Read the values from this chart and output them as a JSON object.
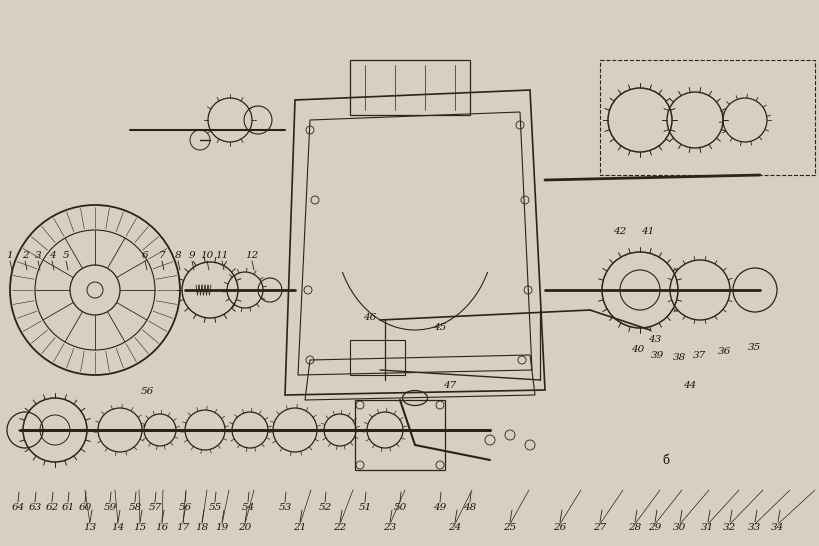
{
  "title": "",
  "background_color": "#d6cfc4",
  "fig_width": 8.2,
  "fig_height": 5.46,
  "dpi": 100,
  "labels_top": [
    "13",
    "14",
    "15",
    "16",
    "17",
    "18",
    "19",
    "20",
    "21",
    "22",
    "23",
    "24",
    "25",
    "26",
    "27",
    "28",
    "29",
    "30",
    "31",
    "32",
    "33",
    "34"
  ],
  "labels_left": [
    "1",
    "2",
    "3",
    "4",
    "5",
    "6",
    "7",
    "8",
    "9",
    "10",
    "11",
    "12"
  ],
  "labels_right": [
    "40",
    "39",
    "38",
    "37",
    "36",
    "35"
  ],
  "labels_bottom": [
    "64",
    "63",
    "62",
    "61",
    "60",
    "59",
    "58",
    "57",
    "56",
    "55",
    "54",
    "53",
    "52",
    "51",
    "50",
    "49",
    "48"
  ],
  "labels_mid_right": [
    "42",
    "41"
  ],
  "labels_misc": [
    "46",
    "45",
    "43",
    "44",
    "47",
    "56",
    "б"
  ],
  "line_color": "#2a2318",
  "text_color": "#1a1508"
}
